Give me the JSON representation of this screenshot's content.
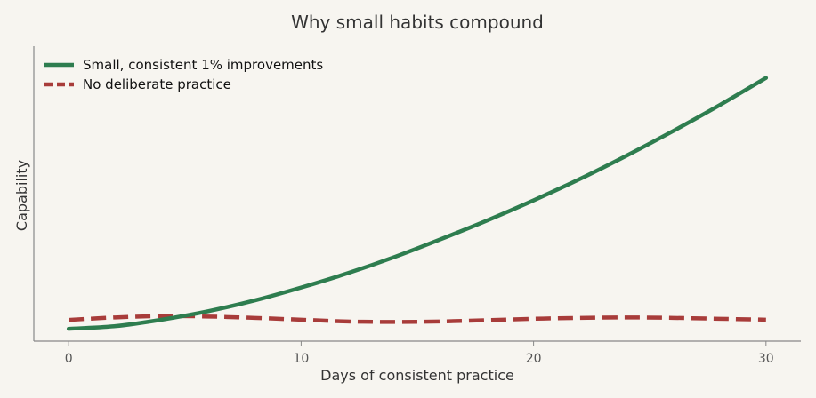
{
  "chart_data": {
    "type": "line",
    "title": "Why small habits compound",
    "xlabel": "Days of consistent practice",
    "ylabel": "Capability",
    "xlim": [
      -1.5,
      31.5
    ],
    "ylim": [
      0.8,
      14.0
    ],
    "xticks": [
      0,
      10,
      20,
      30
    ],
    "yticks_shown": false,
    "grid": false,
    "legend": "top-left",
    "series": [
      {
        "name": "Small, consistent 1% improvements",
        "color": "#2e7d4f",
        "style": "solid",
        "x": [
          0,
          2,
          4,
          6,
          8,
          10,
          12,
          14,
          16,
          18,
          20,
          22,
          24,
          26,
          28,
          30
        ],
        "y": [
          1.35,
          1.47,
          1.76,
          2.14,
          2.62,
          3.2,
          3.84,
          4.56,
          5.36,
          6.2,
          7.1,
          8.06,
          9.1,
          10.2,
          11.36,
          12.58
        ]
      },
      {
        "name": "No deliberate practice",
        "color": "#a83c3a",
        "style": "dashed",
        "x": [
          0,
          2,
          4,
          6,
          8,
          10,
          12,
          14,
          16,
          18,
          20,
          22,
          24,
          26,
          28,
          30
        ],
        "y": [
          1.75,
          1.86,
          1.92,
          1.9,
          1.84,
          1.76,
          1.68,
          1.66,
          1.68,
          1.74,
          1.8,
          1.84,
          1.86,
          1.84,
          1.8,
          1.76
        ]
      }
    ]
  }
}
